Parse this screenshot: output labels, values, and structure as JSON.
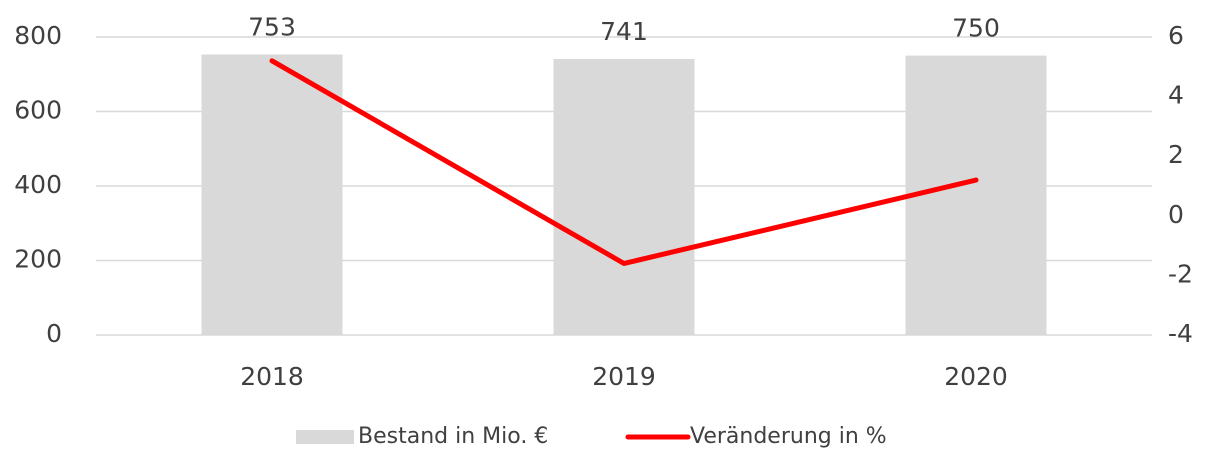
{
  "chart_data": {
    "type": "bar_line",
    "categories": [
      "2018",
      "2019",
      "2020"
    ],
    "series": [
      {
        "name": "Bestand in Mio. €",
        "type": "bar",
        "color": "#d9d9d9",
        "values": [
          753,
          741,
          750
        ]
      },
      {
        "name": "Veränderung in %",
        "type": "line",
        "axis": "y2",
        "color": "#ff0000",
        "values": [
          5.2,
          -1.6,
          1.2
        ]
      }
    ],
    "ylim": [
      0,
      800
    ],
    "yticks": [
      0,
      200,
      400,
      600,
      800
    ],
    "y2lim": [
      -4,
      6
    ],
    "y2ticks": [
      -4,
      -2,
      0,
      2,
      4,
      6
    ],
    "grid": true,
    "legend": "bottom"
  }
}
